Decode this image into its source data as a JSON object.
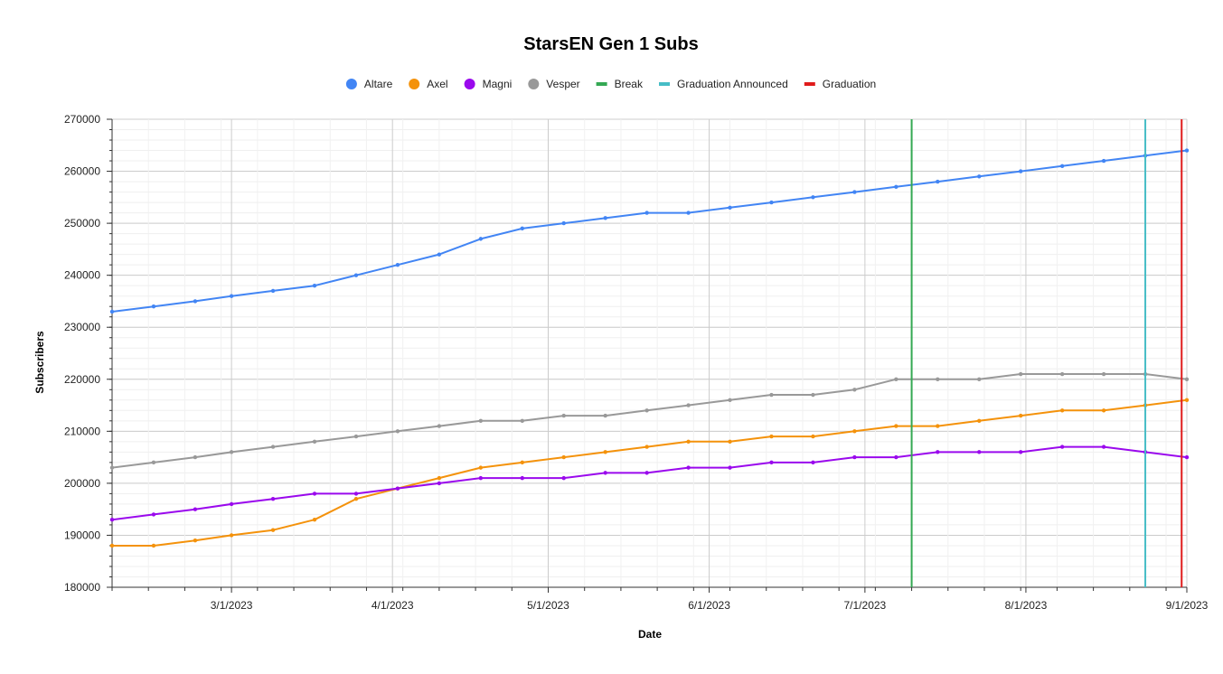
{
  "chart_data": {
    "type": "line",
    "title": "StarsEN Gen 1 Subs",
    "xlabel": "Date",
    "ylabel": "Subscribers",
    "ylim": [
      180000,
      270000
    ],
    "y_ticks": [
      180000,
      190000,
      200000,
      210000,
      220000,
      230000,
      240000,
      250000,
      260000,
      270000
    ],
    "x_ticks": [
      "3/1/2023",
      "4/1/2023",
      "5/1/2023",
      "6/1/2023",
      "7/1/2023",
      "8/1/2023",
      "9/1/2023"
    ],
    "xlim": [
      "2023-02-06",
      "2023-09-01"
    ],
    "grid": true,
    "legend_position": "top",
    "x": [
      "2023-02-06",
      "2023-02-14",
      "2023-02-22",
      "2023-03-01",
      "2023-03-09",
      "2023-03-17",
      "2023-03-25",
      "2023-04-02",
      "2023-04-10",
      "2023-04-18",
      "2023-04-26",
      "2023-05-04",
      "2023-05-12",
      "2023-05-20",
      "2023-05-28",
      "2023-06-05",
      "2023-06-13",
      "2023-06-21",
      "2023-06-29",
      "2023-07-07",
      "2023-07-15",
      "2023-07-23",
      "2023-07-31",
      "2023-08-08",
      "2023-08-16",
      "2023-08-24",
      "2023-09-01"
    ],
    "series": [
      {
        "name": "Altare",
        "color": "#4285f4",
        "values": [
          233000,
          234000,
          235000,
          236000,
          237000,
          238000,
          240000,
          242000,
          244000,
          247000,
          249000,
          250000,
          251000,
          252000,
          252000,
          253000,
          254000,
          255000,
          256000,
          257000,
          258000,
          259000,
          260000,
          261000,
          262000,
          263000,
          264000
        ]
      },
      {
        "name": "Axel",
        "color": "#f4920b",
        "values": [
          188000,
          188000,
          189000,
          190000,
          191000,
          193000,
          197000,
          199000,
          201000,
          203000,
          204000,
          205000,
          206000,
          207000,
          208000,
          208000,
          209000,
          209000,
          210000,
          211000,
          211000,
          212000,
          213000,
          214000,
          214000,
          215000,
          216000
        ]
      },
      {
        "name": "Magni",
        "color": "#9a09ed",
        "values": [
          193000,
          194000,
          195000,
          196000,
          197000,
          198000,
          198000,
          199000,
          200000,
          201000,
          201000,
          201000,
          202000,
          202000,
          203000,
          203000,
          204000,
          204000,
          205000,
          205000,
          206000,
          206000,
          206000,
          207000,
          207000,
          206000,
          205000
        ]
      },
      {
        "name": "Vesper",
        "color": "#999999",
        "values": [
          203000,
          204000,
          205000,
          206000,
          207000,
          208000,
          209000,
          210000,
          211000,
          212000,
          212000,
          213000,
          213000,
          214000,
          215000,
          216000,
          217000,
          217000,
          218000,
          220000,
          220000,
          220000,
          221000,
          221000,
          221000,
          221000,
          220000
        ]
      }
    ],
    "events": [
      {
        "name": "Break",
        "color": "#34a853",
        "date": "2023-07-10"
      },
      {
        "name": "Graduation Announced",
        "color": "#46bdc6",
        "date": "2023-08-24"
      },
      {
        "name": "Graduation",
        "color": "#e01b1b",
        "date": "2023-08-31"
      }
    ]
  }
}
